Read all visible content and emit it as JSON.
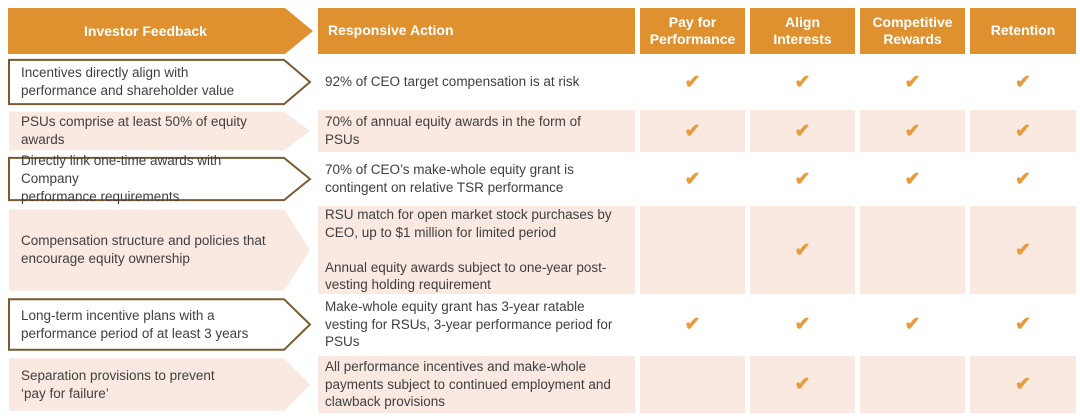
{
  "header": {
    "feedback_label": "Investor Feedback",
    "action_label": "Responsive Action",
    "check_columns": [
      "Pay for Performance",
      "Align Interests",
      "Competitive Rewards",
      "Retention"
    ]
  },
  "rows": [
    {
      "feedback": "Incentives directly align with\nperformance and shareholder value",
      "actions": [
        "92% of CEO target compensation is at risk"
      ],
      "checks": [
        true,
        true,
        true,
        true
      ]
    },
    {
      "feedback": "PSUs comprise at least 50% of equity\nawards",
      "actions": [
        "70% of annual equity awards in the form of\nPSUs"
      ],
      "checks": [
        true,
        true,
        true,
        true
      ]
    },
    {
      "feedback": "Directly link one-time awards with Company\nperformance requirements",
      "actions": [
        "70% of CEO’s make-whole equity grant is\ncontingent on relative TSR performance"
      ],
      "checks": [
        true,
        true,
        true,
        true
      ]
    },
    {
      "feedback": "Compensation structure and policies that\nencourage equity ownership",
      "actions": [
        "RSU match for open market stock purchases by\nCEO, up to $1 million for limited period",
        "Annual equity awards subject to one-year post-\nvesting holding requirement"
      ],
      "checks": [
        false,
        true,
        false,
        true
      ]
    },
    {
      "feedback": "Long-term incentive plans with a\nperformance period of at least 3 years",
      "actions": [
        "Make-whole equity grant has 3-year ratable\nvesting for RSUs, 3-year performance period for\nPSUs"
      ],
      "checks": [
        true,
        true,
        true,
        true
      ]
    },
    {
      "feedback": "Separation provisions to prevent\n‘pay for failure’",
      "actions": [
        "All performance incentives and make-whole\npayments subject to continued employment and\nclawback provisions"
      ],
      "checks": [
        false,
        true,
        false,
        true
      ]
    }
  ],
  "check_glyph": "✔",
  "colors": {
    "orange": "#E0912F",
    "pink": "#F9E9E1",
    "check": "#E89B3C",
    "brown": "#7A5A2E",
    "text": "#3F3F3F"
  }
}
